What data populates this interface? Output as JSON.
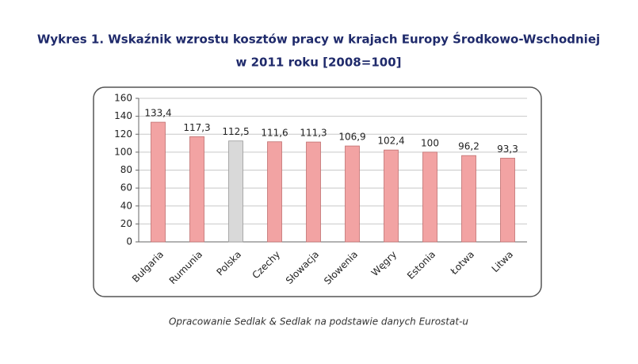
{
  "chart_data": {
    "type": "bar",
    "title": [
      "Wykres 1. Wskaźnik wzrostu kosztów pracy w krajach Europy Środkowo-Wschodniej",
      "w 2011 roku [2008=100]"
    ],
    "categories": [
      "Bułgaria",
      "Rumunia",
      "Polska",
      "Czechy",
      "Słowacja",
      "Słowenia",
      "Węgry",
      "Estonia",
      "Łotwa",
      "Litwa"
    ],
    "values": [
      133.4,
      117.3,
      112.5,
      111.6,
      111.3,
      106.9,
      102.4,
      100,
      96.2,
      93.3
    ],
    "value_labels": [
      "133,4",
      "117,3",
      "112,5",
      "111,6",
      "111,3",
      "106,9",
      "102,4",
      "100",
      "96,2",
      "93,3"
    ],
    "colors": [
      "#f2a3a3",
      "#f2a3a3",
      "#d9d9d9",
      "#f2a3a3",
      "#f2a3a3",
      "#f2a3a3",
      "#f2a3a3",
      "#f2a3a3",
      "#f2a3a3",
      "#f2a3a3"
    ],
    "ylim": [
      0,
      160
    ],
    "yticks": [
      0,
      20,
      40,
      60,
      80,
      100,
      120,
      140,
      160
    ],
    "grid": true,
    "source": "Opracowanie Sedlak & Sedlak na podstawie danych Eurostat-u"
  }
}
